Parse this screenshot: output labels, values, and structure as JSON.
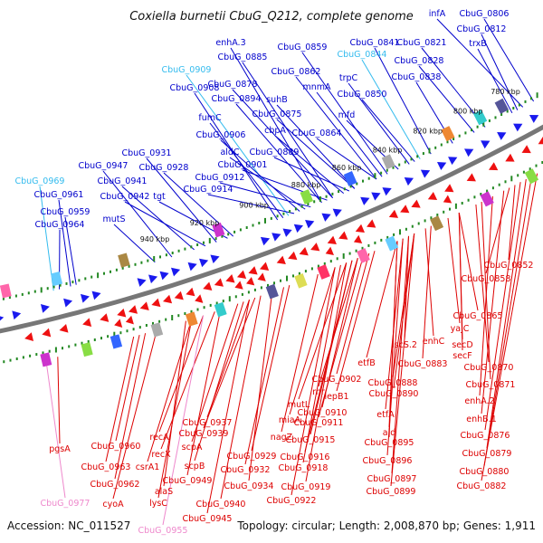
{
  "title": "Coxiella burnetii CbuG_Q212, complete genome",
  "footer": {
    "accession": "Accession: NC_011527",
    "topology": "Topology: circular; Length: 2,008,870 bp; Genes: 1,911"
  },
  "colors": {
    "top_label": "#0000cc",
    "top_label_light": "#33bbee",
    "bottom_label": "#dd0000",
    "bottom_label_light": "#ee88cc",
    "plus_strand": "#1a1aee",
    "minus_strand": "#ee1111",
    "backbone": "#777777",
    "tick": "#228822"
  },
  "kbp_ticks": [
    "780 kbp",
    "800 kbp",
    "820 kbp",
    "840 kbp",
    "860 kbp",
    "880 kbp",
    "900 kbp",
    "920 kbp",
    "940 kbp"
  ],
  "top_labels": [
    {
      "text": "infA",
      "light": false
    },
    {
      "text": "CbuG_0806",
      "light": false
    },
    {
      "text": "CbuG_0812",
      "light": false
    },
    {
      "text": "trxB",
      "light": false
    },
    {
      "text": "CbuG_0841",
      "light": false
    },
    {
      "text": "CbuG_0821",
      "light": false
    },
    {
      "text": "CbuG_0859",
      "light": false
    },
    {
      "text": "CbuG_0844",
      "light": true
    },
    {
      "text": "CbuG_0828",
      "light": false
    },
    {
      "text": "enhA.3",
      "light": false
    },
    {
      "text": "CbuG_0885",
      "light": false
    },
    {
      "text": "CbuG_0862",
      "light": false
    },
    {
      "text": "trpC",
      "light": false
    },
    {
      "text": "CbuG_0838",
      "light": false
    },
    {
      "text": "CbuG_0909",
      "light": true
    },
    {
      "text": "mnmA",
      "light": false
    },
    {
      "text": "CbuG_0878",
      "light": false
    },
    {
      "text": "CbuG_0850",
      "light": false
    },
    {
      "text": "CbuG_0908",
      "light": false
    },
    {
      "text": "CbuG_0894",
      "light": false
    },
    {
      "text": "suhB",
      "light": false
    },
    {
      "text": "CbuG_0875",
      "light": false
    },
    {
      "text": "mfd",
      "light": false
    },
    {
      "text": "fumC",
      "light": false
    },
    {
      "text": "cbpA",
      "light": false
    },
    {
      "text": "CbuG_0906",
      "light": false
    },
    {
      "text": "CbuG_0864",
      "light": false
    },
    {
      "text": "aldC",
      "light": false
    },
    {
      "text": "CbuG_0889",
      "light": false
    },
    {
      "text": "CbuG_0931",
      "light": false
    },
    {
      "text": "CbuG_0947",
      "light": false
    },
    {
      "text": "CbuG_0928",
      "light": false
    },
    {
      "text": "CbuG_0901",
      "light": false
    },
    {
      "text": "CbuG_0912",
      "light": false
    },
    {
      "text": "CbuG_0969",
      "light": true
    },
    {
      "text": "CbuG_0941",
      "light": false
    },
    {
      "text": "CbuG_0914",
      "light": false
    },
    {
      "text": "CbuG_0961",
      "light": false
    },
    {
      "text": "CbuG_0942",
      "light": false
    },
    {
      "text": "tgt",
      "light": false
    },
    {
      "text": "CbuG_0959",
      "light": false
    },
    {
      "text": "CbuG_0964",
      "light": false
    },
    {
      "text": "mutS",
      "light": false
    }
  ],
  "bottom_labels": [
    {
      "text": "CbuG_0852",
      "light": false
    },
    {
      "text": "CbuG_0858",
      "light": false
    },
    {
      "text": "CbuG_0865",
      "light": false
    },
    {
      "text": "yajC",
      "light": false
    },
    {
      "text": "enhC",
      "light": false
    },
    {
      "text": "secD",
      "light": false
    },
    {
      "text": "iscS.2",
      "light": false
    },
    {
      "text": "secF",
      "light": false
    },
    {
      "text": "CbuG_0883",
      "light": false
    },
    {
      "text": "CbuG_0870",
      "light": false
    },
    {
      "text": "etfB",
      "light": false
    },
    {
      "text": "CbuG_0871",
      "light": false
    },
    {
      "text": "CbuG_0888",
      "light": false
    },
    {
      "text": "CbuG_0902",
      "light": false
    },
    {
      "text": "CbuG_0890",
      "light": false
    },
    {
      "text": "enhA.2",
      "light": false
    },
    {
      "text": "rnr",
      "light": false
    },
    {
      "text": "lepB1",
      "light": false
    },
    {
      "text": "enhB.1",
      "light": false
    },
    {
      "text": "mutL",
      "light": false
    },
    {
      "text": "CbuG_0910",
      "light": false
    },
    {
      "text": "etfA",
      "light": false
    },
    {
      "text": "miaA",
      "light": false
    },
    {
      "text": "CbuG_0911",
      "light": false
    },
    {
      "text": "CbuG_0937",
      "light": false
    },
    {
      "text": "ald",
      "light": false
    },
    {
      "text": "CbuG_0876",
      "light": false
    },
    {
      "text": "recA",
      "light": false
    },
    {
      "text": "CbuG_0939",
      "light": false
    },
    {
      "text": "nagZ",
      "light": false
    },
    {
      "text": "CbuG_0915",
      "light": false
    },
    {
      "text": "CbuG_0895",
      "light": false
    },
    {
      "text": "pgsA",
      "light": false
    },
    {
      "text": "CbuG_0960",
      "light": false
    },
    {
      "text": "recX",
      "light": false
    },
    {
      "text": "scpA",
      "light": false
    },
    {
      "text": "CbuG_0929",
      "light": false
    },
    {
      "text": "CbuG_0916",
      "light": false
    },
    {
      "text": "CbuG_0879",
      "light": false
    },
    {
      "text": "CbuG_0963",
      "light": false
    },
    {
      "text": "csrA1",
      "light": false
    },
    {
      "text": "scpB",
      "light": false
    },
    {
      "text": "CbuG_0932",
      "light": false
    },
    {
      "text": "CbuG_0918",
      "light": false
    },
    {
      "text": "CbuG_0896",
      "light": false
    },
    {
      "text": "CbuG_0949",
      "light": false
    },
    {
      "text": "CbuG_0880",
      "light": false
    },
    {
      "text": "CbuG_0962",
      "light": false
    },
    {
      "text": "alaS",
      "light": false
    },
    {
      "text": "CbuG_0934",
      "light": false
    },
    {
      "text": "CbuG_0919",
      "light": false
    },
    {
      "text": "CbuG_0897",
      "light": false
    },
    {
      "text": "CbuG_0882",
      "light": false
    },
    {
      "text": "CbuG_0977",
      "light": true
    },
    {
      "text": "cyoA",
      "light": false
    },
    {
      "text": "lysC",
      "light": false
    },
    {
      "text": "CbuG_0940",
      "light": false
    },
    {
      "text": "CbuG_0922",
      "light": false
    },
    {
      "text": "CbuG_0899",
      "light": false
    },
    {
      "text": "CbuG_0945",
      "light": false
    },
    {
      "text": "CbuG_0955",
      "light": true
    }
  ]
}
